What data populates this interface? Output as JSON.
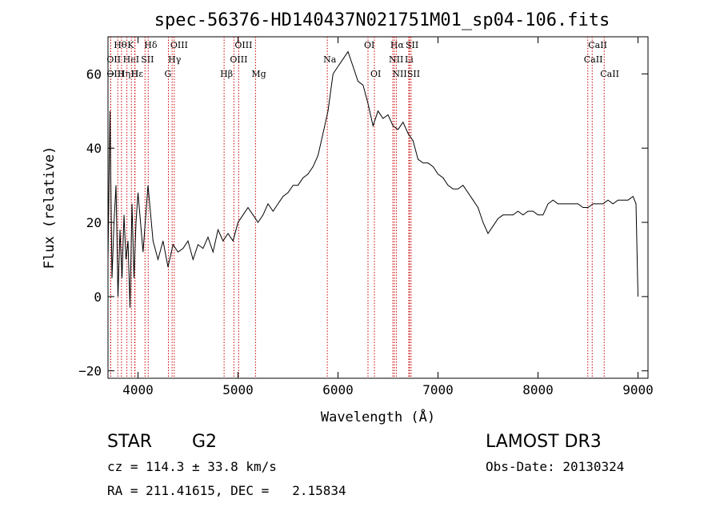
{
  "chart_data": {
    "type": "line",
    "title": "spec-56376-HD140437N021751M01_sp04-106.fits",
    "xlabel": "Wavelength (Å)",
    "ylabel": "Flux (relative)",
    "xlim": [
      3700,
      9100
    ],
    "ylim": [
      -22,
      70
    ],
    "xticks": [
      4000,
      5000,
      6000,
      7000,
      8000,
      9000
    ],
    "yticks": [
      -20,
      0,
      20,
      40,
      60
    ],
    "series": [
      {
        "name": "flux",
        "x": [
          3700,
          3720,
          3740,
          3760,
          3780,
          3800,
          3820,
          3840,
          3860,
          3880,
          3900,
          3920,
          3940,
          3960,
          3980,
          4000,
          4050,
          4100,
          4150,
          4200,
          4250,
          4300,
          4350,
          4400,
          4450,
          4500,
          4550,
          4600,
          4650,
          4700,
          4750,
          4800,
          4850,
          4900,
          4950,
          5000,
          5050,
          5100,
          5150,
          5200,
          5250,
          5300,
          5350,
          5400,
          5450,
          5500,
          5550,
          5600,
          5650,
          5700,
          5750,
          5800,
          5850,
          5900,
          5950,
          6000,
          6050,
          6100,
          6150,
          6200,
          6250,
          6300,
          6350,
          6400,
          6450,
          6500,
          6550,
          6600,
          6650,
          6700,
          6750,
          6800,
          6850,
          6900,
          6950,
          7000,
          7050,
          7100,
          7150,
          7200,
          7250,
          7300,
          7350,
          7400,
          7450,
          7500,
          7550,
          7600,
          7650,
          7700,
          7750,
          7800,
          7850,
          7900,
          7950,
          8000,
          8050,
          8100,
          8150,
          8200,
          8250,
          8300,
          8350,
          8400,
          8450,
          8500,
          8550,
          8600,
          8650,
          8700,
          8750,
          8800,
          8850,
          8900,
          8950,
          8980,
          9000
        ],
        "y": [
          10,
          50,
          5,
          20,
          30,
          0,
          18,
          5,
          22,
          10,
          15,
          -3,
          25,
          5,
          20,
          28,
          12,
          30,
          15,
          10,
          15,
          8,
          14,
          12,
          13,
          15,
          10,
          14,
          13,
          16,
          12,
          18,
          15,
          17,
          15,
          20,
          22,
          24,
          22,
          20,
          22,
          25,
          23,
          25,
          27,
          28,
          30,
          30,
          32,
          33,
          35,
          38,
          44,
          50,
          60,
          62,
          64,
          66,
          62,
          58,
          57,
          52,
          46,
          50,
          48,
          49,
          46,
          45,
          47,
          44,
          42,
          37,
          36,
          36,
          35,
          33,
          32,
          30,
          29,
          29,
          30,
          28,
          26,
          24,
          20,
          17,
          19,
          21,
          22,
          22,
          22,
          23,
          22,
          23,
          23,
          22,
          22,
          25,
          26,
          25,
          25,
          25,
          25,
          25,
          24,
          24,
          25,
          25,
          25,
          26,
          25,
          26,
          26,
          26,
          27,
          25,
          0
        ]
      }
    ],
    "lines": [
      {
        "label": "Hθ",
        "x": 3798,
        "row": 1
      },
      {
        "label": "OII",
        "x": 3727,
        "row": 2
      },
      {
        "label": "OIII",
        "x": 3727,
        "row": 3
      },
      {
        "label": "Hη",
        "x": 3835,
        "row": 3
      },
      {
        "label": "HeI",
        "x": 3889,
        "row": 2
      },
      {
        "label": "Hε",
        "x": 3970,
        "row": 3
      },
      {
        "label": "K",
        "x": 3934,
        "row": 1
      },
      {
        "label": "H",
        "x": 3968,
        "row": 3
      },
      {
        "label": "SII",
        "x": 4070,
        "row": 2
      },
      {
        "label": "Hδ",
        "x": 4102,
        "row": 1
      },
      {
        "label": "OIII",
        "x": 4363,
        "row": 1
      },
      {
        "label": "Hγ",
        "x": 4341,
        "row": 2
      },
      {
        "label": "G",
        "x": 4304,
        "row": 3
      },
      {
        "label": "Hβ",
        "x": 4861,
        "row": 3
      },
      {
        "label": "OIII",
        "x": 5007,
        "row": 1
      },
      {
        "label": "OIII",
        "x": 4959,
        "row": 2
      },
      {
        "label": "Mg",
        "x": 5175,
        "row": 3
      },
      {
        "label": "Na",
        "x": 5893,
        "row": 2
      },
      {
        "label": "OI",
        "x": 6300,
        "row": 1
      },
      {
        "label": "OI",
        "x": 6364,
        "row": 3
      },
      {
        "label": "Hα",
        "x": 6563,
        "row": 1
      },
      {
        "label": "NII",
        "x": 6548,
        "row": 2
      },
      {
        "label": "NII",
        "x": 6583,
        "row": 3
      },
      {
        "label": "SII",
        "x": 6716,
        "row": 1
      },
      {
        "label": "Li",
        "x": 6708,
        "row": 2
      },
      {
        "label": "SII",
        "x": 6731,
        "row": 3
      },
      {
        "label": "CaII",
        "x": 8542,
        "row": 1
      },
      {
        "label": "CaII",
        "x": 8498,
        "row": 2
      },
      {
        "label": "CaII",
        "x": 8662,
        "row": 3
      }
    ]
  },
  "info": {
    "class": "STAR",
    "subclass": "G2",
    "survey": "LAMOST DR3",
    "cz": "cz = 114.3 ± 33.8 km/s",
    "obsdate": "Obs-Date: 20130324",
    "radec": "RA = 211.41615, DEC =   2.15834"
  },
  "colors": {
    "line_marker": "#cc0000",
    "spectrum": "#000000"
  }
}
